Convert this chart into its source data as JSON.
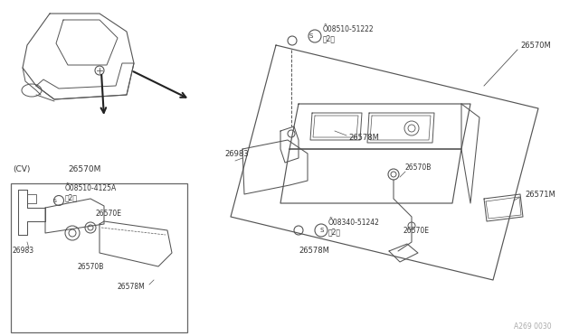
{
  "bg_color": "#ffffff",
  "line_color": "#555555",
  "text_color": "#333333",
  "fig_width": 6.4,
  "fig_height": 3.72,
  "watermark": "A269 0030",
  "parts": {
    "26570M_main": "26570M",
    "26578M": "26578M",
    "26570B": "26570B",
    "26570E": "26570E",
    "26571M": "26571M",
    "26983": "26983",
    "s08510_51222": "Õ08510-51222\n（2）",
    "s08340_51242": "Õ08340-51242\n（2）",
    "s08510_4125A": "Õ08510-4125A\n（2）",
    "cv_label": "(CV)",
    "cv_26570M": "26570M"
  }
}
